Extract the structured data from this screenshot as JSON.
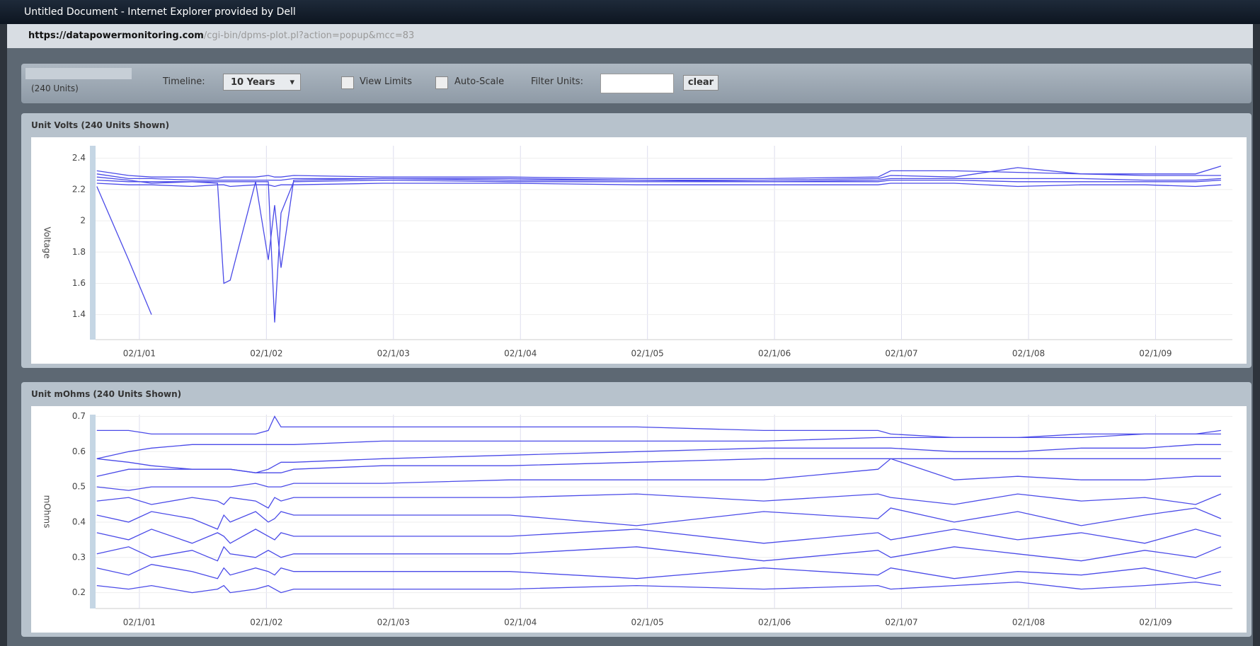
{
  "window": {
    "title": "Untitled Document - Internet Explorer provided by Dell",
    "url_host": "https://datapowermonitoring.com",
    "url_path": "/cgi-bin/dpms-plot.pl?action=popup&mcc=83"
  },
  "toolbar": {
    "units": "(240 Units)",
    "timeline_label": "Timeline:",
    "timeline_value": "10 Years",
    "view_limits": "View Limits",
    "auto_scale": "Auto-Scale",
    "filter_label": "Filter Units:",
    "clear": "clear"
  },
  "chart_data": [
    {
      "type": "line",
      "title": "Unit Volts (240 Units Shown)",
      "ylabel": "Voltage",
      "color": "#4a4ae8",
      "grid": true,
      "xlim": [
        2000.74,
        2009.69
      ],
      "ylim": [
        1.24,
        2.48
      ],
      "xticks": [
        {
          "value": 2001.085,
          "label": "02/1/01"
        },
        {
          "value": 2002.085,
          "label": "02/1/02"
        },
        {
          "value": 2003.085,
          "label": "02/1/03"
        },
        {
          "value": 2004.085,
          "label": "02/1/04"
        },
        {
          "value": 2005.085,
          "label": "02/1/05"
        },
        {
          "value": 2006.085,
          "label": "02/1/06"
        },
        {
          "value": 2007.085,
          "label": "02/1/07"
        },
        {
          "value": 2008.085,
          "label": "02/1/08"
        },
        {
          "value": 2009.085,
          "label": "02/1/09"
        }
      ],
      "yticks": [
        1.4,
        1.6,
        1.8,
        2,
        2.2,
        2.4
      ],
      "x": [
        2000.75,
        2001.0,
        2001.18,
        2001.5,
        2001.7,
        2001.75,
        2001.8,
        2002.0,
        2002.1,
        2002.15,
        2002.2,
        2002.3,
        2003.0,
        2004.0,
        2005.0,
        2006.0,
        2006.9,
        2007.0,
        2007.5,
        2008.0,
        2008.5,
        2009.0,
        2009.4,
        2009.6
      ],
      "series": [
        {
          "values": [
            2.32,
            2.29,
            2.28,
            2.28,
            2.27,
            2.28,
            2.28,
            2.28,
            2.29,
            2.28,
            2.28,
            2.29,
            2.28,
            2.28,
            2.27,
            2.27,
            2.28,
            2.32,
            2.32,
            2.31,
            2.3,
            2.3,
            2.3,
            2.35
          ]
        },
        {
          "values": [
            2.26,
            2.25,
            2.25,
            2.25,
            2.24,
            1.6,
            1.62,
            2.25,
            2.25,
            1.35,
            2.05,
            2.25,
            2.26,
            2.25,
            2.25,
            2.25,
            2.25,
            2.26,
            2.26,
            2.25,
            2.25,
            2.25,
            2.25,
            2.26
          ]
        },
        {
          "values": [
            2.22,
            1.75,
            1.4,
            null,
            null,
            null,
            null,
            null,
            null,
            null,
            null,
            null,
            null,
            null,
            null,
            null,
            null,
            null,
            null,
            null,
            null,
            null,
            null,
            null
          ]
        },
        {
          "values": [
            2.28,
            2.26,
            2.24,
            2.25,
            2.25,
            2.25,
            2.25,
            2.25,
            1.75,
            2.1,
            1.7,
            2.26,
            2.27,
            2.27,
            2.26,
            2.26,
            2.27,
            2.29,
            2.28,
            2.34,
            2.3,
            2.29,
            2.29,
            2.29
          ]
        },
        {
          "values": [
            2.24,
            2.23,
            2.23,
            2.22,
            2.23,
            2.23,
            2.22,
            2.23,
            2.23,
            2.22,
            2.23,
            2.23,
            2.24,
            2.24,
            2.23,
            2.23,
            2.23,
            2.24,
            2.24,
            2.22,
            2.23,
            2.23,
            2.22,
            2.23
          ]
        },
        {
          "values": [
            2.3,
            2.27,
            2.27,
            2.26,
            2.26,
            2.26,
            2.26,
            2.26,
            2.26,
            2.26,
            2.26,
            2.27,
            2.27,
            2.26,
            2.26,
            2.25,
            2.26,
            2.27,
            2.27,
            2.27,
            2.27,
            2.26,
            2.26,
            2.27
          ]
        }
      ]
    },
    {
      "type": "line",
      "title": "Unit mOhms (240 Units Shown)",
      "ylabel": "mOhms",
      "color": "#4a4ae8",
      "grid": true,
      "xlim": [
        2000.74,
        2009.69
      ],
      "ylim": [
        0.155,
        0.705
      ],
      "xticks": [
        {
          "value": 2001.085,
          "label": "02/1/01"
        },
        {
          "value": 2002.085,
          "label": "02/1/02"
        },
        {
          "value": 2003.085,
          "label": "02/1/03"
        },
        {
          "value": 2004.085,
          "label": "02/1/04"
        },
        {
          "value": 2005.085,
          "label": "02/1/05"
        },
        {
          "value": 2006.085,
          "label": "02/1/06"
        },
        {
          "value": 2007.085,
          "label": "02/1/07"
        },
        {
          "value": 2008.085,
          "label": "02/1/08"
        },
        {
          "value": 2009.085,
          "label": "02/1/09"
        }
      ],
      "yticks": [
        0.2,
        0.3,
        0.4,
        0.5,
        0.6,
        0.7
      ],
      "x": [
        2000.75,
        2001.0,
        2001.18,
        2001.5,
        2001.7,
        2001.75,
        2001.8,
        2002.0,
        2002.1,
        2002.15,
        2002.2,
        2002.3,
        2003.0,
        2004.0,
        2005.0,
        2006.0,
        2006.9,
        2007.0,
        2007.5,
        2008.0,
        2008.5,
        2009.0,
        2009.4,
        2009.6
      ],
      "series": [
        {
          "values": [
            0.66,
            0.66,
            0.65,
            0.65,
            0.65,
            0.65,
            0.65,
            0.65,
            0.66,
            0.7,
            0.67,
            0.67,
            0.67,
            0.67,
            0.67,
            0.66,
            0.66,
            0.65,
            0.64,
            0.64,
            0.64,
            0.65,
            0.65,
            0.66
          ]
        },
        {
          "values": [
            0.58,
            0.6,
            0.61,
            0.62,
            0.62,
            0.62,
            0.62,
            0.62,
            0.62,
            0.62,
            0.62,
            0.62,
            0.63,
            0.63,
            0.63,
            0.63,
            0.64,
            0.64,
            0.64,
            0.64,
            0.65,
            0.65,
            0.65,
            0.65
          ]
        },
        {
          "values": [
            0.53,
            0.55,
            0.55,
            0.55,
            0.55,
            0.55,
            0.55,
            0.54,
            0.55,
            0.56,
            0.57,
            0.57,
            0.58,
            0.59,
            0.6,
            0.61,
            0.61,
            0.61,
            0.6,
            0.6,
            0.61,
            0.61,
            0.62,
            0.62
          ]
        },
        {
          "values": [
            0.58,
            0.57,
            0.56,
            0.55,
            0.55,
            0.55,
            0.55,
            0.54,
            0.54,
            0.54,
            0.54,
            0.55,
            0.56,
            0.56,
            0.57,
            0.58,
            0.58,
            0.58,
            0.58,
            0.58,
            0.58,
            0.58,
            0.58,
            0.58
          ]
        },
        {
          "values": [
            0.5,
            0.49,
            0.5,
            0.5,
            0.5,
            0.5,
            0.5,
            0.51,
            0.5,
            0.5,
            0.5,
            0.51,
            0.51,
            0.52,
            0.52,
            0.52,
            0.55,
            0.58,
            0.52,
            0.53,
            0.52,
            0.52,
            0.53,
            0.53
          ]
        },
        {
          "values": [
            0.46,
            0.47,
            0.45,
            0.47,
            0.46,
            0.45,
            0.47,
            0.46,
            0.44,
            0.47,
            0.46,
            0.47,
            0.47,
            0.47,
            0.48,
            0.46,
            0.48,
            0.47,
            0.45,
            0.48,
            0.46,
            0.47,
            0.45,
            0.48
          ]
        },
        {
          "values": [
            0.42,
            0.4,
            0.43,
            0.41,
            0.38,
            0.42,
            0.4,
            0.43,
            0.4,
            0.41,
            0.43,
            0.42,
            0.42,
            0.42,
            0.39,
            0.43,
            0.41,
            0.44,
            0.4,
            0.43,
            0.39,
            0.42,
            0.44,
            0.41
          ]
        },
        {
          "values": [
            0.37,
            0.35,
            0.38,
            0.34,
            0.37,
            0.36,
            0.34,
            0.38,
            0.36,
            0.35,
            0.37,
            0.36,
            0.36,
            0.36,
            0.38,
            0.34,
            0.37,
            0.35,
            0.38,
            0.35,
            0.37,
            0.34,
            0.38,
            0.36
          ]
        },
        {
          "values": [
            0.31,
            0.33,
            0.3,
            0.32,
            0.29,
            0.33,
            0.31,
            0.3,
            0.32,
            0.31,
            0.3,
            0.31,
            0.31,
            0.31,
            0.33,
            0.29,
            0.32,
            0.3,
            0.33,
            0.31,
            0.29,
            0.32,
            0.3,
            0.33
          ]
        },
        {
          "values": [
            0.27,
            0.25,
            0.28,
            0.26,
            0.24,
            0.27,
            0.25,
            0.27,
            0.26,
            0.25,
            0.27,
            0.26,
            0.26,
            0.26,
            0.24,
            0.27,
            0.25,
            0.27,
            0.24,
            0.26,
            0.25,
            0.27,
            0.24,
            0.26
          ]
        },
        {
          "values": [
            0.22,
            0.21,
            0.22,
            0.2,
            0.21,
            0.22,
            0.2,
            0.21,
            0.22,
            0.21,
            0.2,
            0.21,
            0.21,
            0.21,
            0.22,
            0.21,
            0.22,
            0.21,
            0.22,
            0.23,
            0.21,
            0.22,
            0.23,
            0.22
          ]
        }
      ]
    }
  ]
}
